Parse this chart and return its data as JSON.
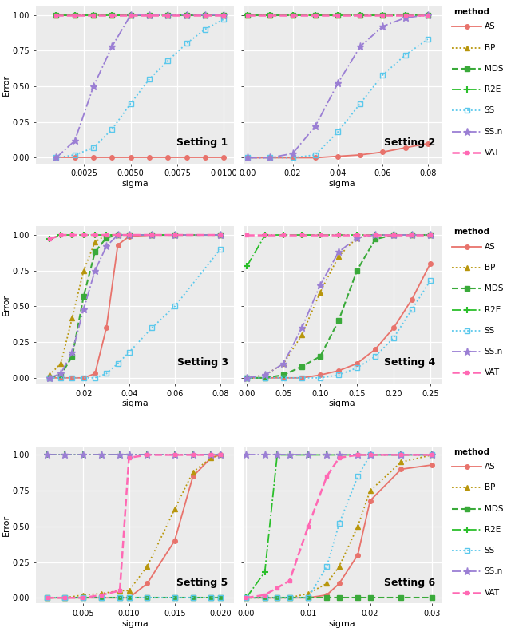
{
  "methods": [
    "AS",
    "BP",
    "MDS",
    "R2E",
    "SS",
    "SS.n",
    "VAT"
  ],
  "method_styles": {
    "AS": {
      "color": "#E8736C",
      "lw": 1.3,
      "ls": "-",
      "marker": "o",
      "ms": 4.0,
      "mew": 1.0
    },
    "BP": {
      "color": "#B8960C",
      "lw": 1.3,
      "ls": ":",
      "marker": "^",
      "ms": 4.5,
      "mew": 1.0
    },
    "MDS": {
      "color": "#3AAA3A",
      "lw": 1.5,
      "ls": "--",
      "marker": "s",
      "ms": 4.5,
      "mew": 1.0
    },
    "R2E": {
      "color": "#2BBF2B",
      "lw": 1.3,
      "ls": "-.",
      "marker": "+",
      "ms": 6.0,
      "mew": 1.5,
      "mfc": "none"
    },
    "SS": {
      "color": "#5AC8EC",
      "lw": 1.3,
      "ls": ":",
      "marker": "s",
      "ms": 5.0,
      "mew": 1.0,
      "mfc": "none"
    },
    "SS.n": {
      "color": "#9B7FD4",
      "lw": 1.3,
      "ls": "-.",
      "marker": "*",
      "ms": 6.5,
      "mew": 1.0
    },
    "VAT": {
      "color": "#FF69B4",
      "lw": 1.8,
      "ls": "--",
      "marker": "s",
      "ms": 3.5,
      "mew": 1.0
    }
  },
  "background_color": "#EBEBEB",
  "grid_color": "white",
  "ylim": [
    -0.04,
    1.06
  ],
  "yticks": [
    0.0,
    0.25,
    0.5,
    0.75,
    1.0
  ],
  "settings": [
    {
      "title": "Setting 1",
      "sigma": [
        0.001,
        0.002,
        0.003,
        0.004,
        0.005,
        0.006,
        0.007,
        0.008,
        0.009,
        0.01
      ],
      "xlim": [
        -0.0001,
        0.01055
      ],
      "xticks": [
        0.0025,
        0.005,
        0.0075,
        0.01
      ],
      "xticklabels": [
        "0.0025",
        "0.0050",
        "0.0075",
        "0.0100"
      ],
      "data": {
        "AS": [
          0.0,
          0.0,
          0.0,
          0.0,
          0.0,
          0.0,
          0.0,
          0.0,
          0.0,
          0.0
        ],
        "BP": [
          1.0,
          1.0,
          1.0,
          1.0,
          1.0,
          1.0,
          1.0,
          1.0,
          1.0,
          1.0
        ],
        "MDS": [
          1.0,
          1.0,
          1.0,
          1.0,
          1.0,
          1.0,
          1.0,
          1.0,
          1.0,
          1.0
        ],
        "R2E": [
          1.0,
          1.0,
          1.0,
          1.0,
          1.0,
          1.0,
          1.0,
          1.0,
          1.0,
          1.0
        ],
        "SS": [
          0.0,
          0.02,
          0.07,
          0.2,
          0.38,
          0.55,
          0.68,
          0.8,
          0.9,
          0.97
        ],
        "SS.n": [
          0.0,
          0.12,
          0.5,
          0.78,
          1.0,
          1.0,
          1.0,
          1.0,
          1.0,
          1.0
        ],
        "VAT": [
          1.0,
          1.0,
          1.0,
          1.0,
          1.0,
          1.0,
          1.0,
          1.0,
          1.0,
          1.0
        ]
      }
    },
    {
      "title": "Setting 2",
      "sigma": [
        0.0,
        0.01,
        0.02,
        0.03,
        0.04,
        0.05,
        0.06,
        0.07,
        0.08
      ],
      "xlim": [
        -0.002,
        0.086
      ],
      "xticks": [
        0.0,
        0.02,
        0.04,
        0.06,
        0.08
      ],
      "xticklabels": [
        "0.00",
        "0.02",
        "0.04",
        "0.06",
        "0.08"
      ],
      "data": {
        "AS": [
          0.0,
          0.0,
          0.0,
          0.0,
          0.01,
          0.02,
          0.04,
          0.07,
          0.1
        ],
        "BP": [
          1.0,
          1.0,
          1.0,
          1.0,
          1.0,
          1.0,
          1.0,
          1.0,
          1.0
        ],
        "MDS": [
          1.0,
          1.0,
          1.0,
          1.0,
          1.0,
          1.0,
          1.0,
          1.0,
          1.0
        ],
        "R2E": [
          1.0,
          1.0,
          1.0,
          1.0,
          1.0,
          1.0,
          1.0,
          1.0,
          1.0
        ],
        "SS": [
          0.0,
          0.0,
          0.0,
          0.02,
          0.18,
          0.38,
          0.58,
          0.72,
          0.83
        ],
        "SS.n": [
          0.0,
          0.0,
          0.03,
          0.22,
          0.52,
          0.78,
          0.92,
          0.98,
          1.0
        ],
        "VAT": [
          1.0,
          1.0,
          1.0,
          1.0,
          1.0,
          1.0,
          1.0,
          1.0,
          1.0
        ]
      }
    },
    {
      "title": "Setting 3",
      "sigma": [
        0.005,
        0.01,
        0.015,
        0.02,
        0.025,
        0.03,
        0.035,
        0.04,
        0.05,
        0.06,
        0.08
      ],
      "xlim": [
        -0.001,
        0.086
      ],
      "xticks": [
        0.02,
        0.04,
        0.06,
        0.08
      ],
      "xticklabels": [
        "0.02",
        "0.04",
        "0.06",
        "0.08"
      ],
      "data": {
        "AS": [
          0.0,
          0.0,
          0.0,
          0.0,
          0.03,
          0.35,
          0.93,
          0.99,
          1.0,
          1.0,
          1.0
        ],
        "BP": [
          0.02,
          0.1,
          0.42,
          0.75,
          0.95,
          1.0,
          1.0,
          1.0,
          1.0,
          1.0,
          1.0
        ],
        "MDS": [
          0.0,
          0.02,
          0.15,
          0.57,
          0.88,
          0.98,
          1.0,
          1.0,
          1.0,
          1.0,
          1.0
        ],
        "R2E": [
          0.97,
          1.0,
          1.0,
          1.0,
          1.0,
          1.0,
          1.0,
          1.0,
          1.0,
          1.0,
          1.0
        ],
        "SS": [
          0.0,
          0.0,
          0.0,
          0.0,
          0.0,
          0.03,
          0.1,
          0.18,
          0.35,
          0.5,
          0.9
        ],
        "SS.n": [
          0.0,
          0.03,
          0.18,
          0.48,
          0.75,
          0.92,
          1.0,
          1.0,
          1.0,
          1.0,
          1.0
        ],
        "VAT": [
          0.97,
          1.0,
          1.0,
          1.0,
          1.0,
          1.0,
          1.0,
          1.0,
          1.0,
          1.0,
          1.0
        ]
      }
    },
    {
      "title": "Setting 4",
      "sigma": [
        0.0,
        0.025,
        0.05,
        0.075,
        0.1,
        0.125,
        0.15,
        0.175,
        0.2,
        0.225,
        0.25
      ],
      "xlim": [
        -0.005,
        0.265
      ],
      "xticks": [
        0.0,
        0.05,
        0.1,
        0.15,
        0.2,
        0.25
      ],
      "xticklabels": [
        "0.00",
        "0.05",
        "0.10",
        "0.15",
        "0.20",
        "0.25"
      ],
      "data": {
        "AS": [
          0.0,
          0.0,
          0.0,
          0.0,
          0.02,
          0.05,
          0.1,
          0.2,
          0.35,
          0.55,
          0.8
        ],
        "BP": [
          0.0,
          0.02,
          0.1,
          0.3,
          0.6,
          0.85,
          0.98,
          1.0,
          1.0,
          1.0,
          1.0
        ],
        "MDS": [
          0.0,
          0.0,
          0.02,
          0.08,
          0.15,
          0.4,
          0.75,
          0.97,
          1.0,
          1.0,
          1.0
        ],
        "R2E": [
          0.78,
          1.0,
          1.0,
          1.0,
          1.0,
          1.0,
          1.0,
          1.0,
          1.0,
          1.0,
          1.0
        ],
        "SS": [
          0.0,
          0.0,
          0.0,
          0.0,
          0.0,
          0.02,
          0.07,
          0.15,
          0.28,
          0.48,
          0.68
        ],
        "SS.n": [
          0.0,
          0.02,
          0.1,
          0.35,
          0.65,
          0.88,
          0.98,
          1.0,
          1.0,
          1.0,
          1.0
        ],
        "VAT": [
          1.0,
          1.0,
          1.0,
          1.0,
          1.0,
          1.0,
          1.0,
          1.0,
          1.0,
          1.0,
          1.0
        ]
      }
    },
    {
      "title": "Setting 5",
      "sigma": [
        0.001,
        0.003,
        0.005,
        0.007,
        0.009,
        0.01,
        0.012,
        0.015,
        0.017,
        0.019,
        0.02
      ],
      "xlim": [
        -0.0002,
        0.0215
      ],
      "xticks": [
        0.005,
        0.01,
        0.015,
        0.02
      ],
      "xticklabels": [
        "0.005",
        "0.010",
        "0.015",
        "0.020"
      ],
      "data": {
        "AS": [
          0.0,
          0.0,
          0.0,
          0.0,
          0.0,
          0.0,
          0.1,
          0.4,
          0.85,
          0.98,
          1.0
        ],
        "BP": [
          0.0,
          0.0,
          0.02,
          0.03,
          0.05,
          0.05,
          0.22,
          0.62,
          0.88,
          0.98,
          1.0
        ],
        "MDS": [
          0.0,
          0.0,
          0.0,
          0.0,
          0.0,
          0.0,
          0.0,
          0.0,
          0.0,
          0.0,
          0.0
        ],
        "R2E": [
          1.0,
          1.0,
          1.0,
          1.0,
          1.0,
          1.0,
          1.0,
          1.0,
          1.0,
          1.0,
          1.0
        ],
        "SS": [
          0.0,
          0.0,
          0.0,
          0.0,
          0.0,
          0.0,
          0.0,
          0.0,
          0.0,
          0.0,
          0.0
        ],
        "SS.n": [
          1.0,
          1.0,
          1.0,
          1.0,
          1.0,
          1.0,
          1.0,
          1.0,
          1.0,
          1.0,
          1.0
        ],
        "VAT": [
          0.0,
          0.0,
          0.0,
          0.02,
          0.05,
          0.98,
          1.0,
          1.0,
          1.0,
          1.0,
          1.0
        ]
      }
    },
    {
      "title": "Setting 6",
      "sigma": [
        0.0,
        0.003,
        0.005,
        0.007,
        0.01,
        0.013,
        0.015,
        0.018,
        0.02,
        0.025,
        0.03
      ],
      "xlim": [
        -0.0005,
        0.0315
      ],
      "xticks": [
        0.0,
        0.01,
        0.02,
        0.03
      ],
      "xticklabels": [
        "0.00",
        "0.01",
        "0.02",
        "0.03"
      ],
      "data": {
        "AS": [
          0.0,
          0.0,
          0.0,
          0.0,
          0.0,
          0.02,
          0.1,
          0.3,
          0.68,
          0.9,
          0.93
        ],
        "BP": [
          0.0,
          0.0,
          0.0,
          0.0,
          0.03,
          0.1,
          0.22,
          0.5,
          0.75,
          0.95,
          1.0
        ],
        "MDS": [
          0.0,
          0.0,
          0.0,
          0.0,
          0.0,
          0.0,
          0.0,
          0.0,
          0.0,
          0.0,
          0.0
        ],
        "R2E": [
          0.0,
          0.18,
          1.0,
          1.0,
          1.0,
          1.0,
          1.0,
          1.0,
          1.0,
          1.0,
          1.0
        ],
        "SS": [
          0.0,
          0.0,
          0.0,
          0.0,
          0.0,
          0.22,
          0.52,
          0.85,
          1.0,
          1.0,
          1.0
        ],
        "SS.n": [
          1.0,
          1.0,
          1.0,
          1.0,
          1.0,
          1.0,
          1.0,
          1.0,
          1.0,
          1.0,
          1.0
        ],
        "VAT": [
          0.0,
          0.02,
          0.07,
          0.12,
          0.5,
          0.85,
          0.98,
          1.0,
          1.0,
          1.0,
          1.0
        ]
      }
    }
  ]
}
